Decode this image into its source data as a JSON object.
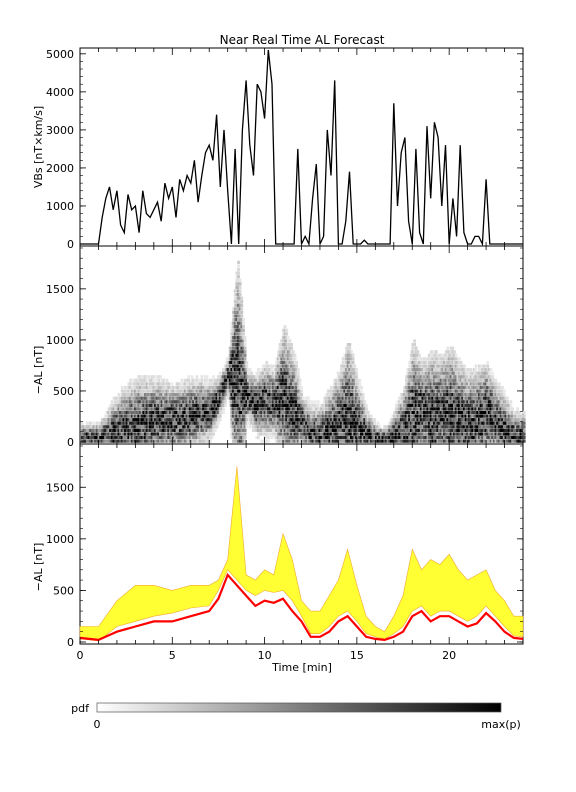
{
  "title": "Near Real Time AL Forecast",
  "colors": {
    "line": "#000000",
    "median": "#ff0000",
    "band_fill": "#ffff33",
    "band_edge": "#f0a830",
    "background": "#ffffff"
  },
  "xaxis": {
    "label": "Time [min]",
    "range": [
      0,
      24
    ],
    "ticks": [
      0,
      5,
      10,
      15,
      20
    ],
    "tick_labels": [
      "0",
      "5",
      "10",
      "15",
      "20"
    ]
  },
  "colorbar": {
    "label": "pdf",
    "min_label": "0",
    "max_label": "max(p)"
  },
  "chart_data": [
    {
      "type": "line",
      "panel": "top",
      "ylabel": "VBs [nT×km/s]",
      "ylim": [
        0,
        5100
      ],
      "y_ticks": [
        0,
        1000,
        2000,
        3000,
        4000,
        5000
      ],
      "y_tick_labels": [
        "0",
        "1000",
        "2000",
        "3000",
        "4000",
        "5000"
      ],
      "series": [
        {
          "x": [
            0.0,
            1.0,
            1.2,
            1.4,
            1.6,
            1.8,
            2.0,
            2.2,
            2.4,
            2.6,
            2.8,
            3.0,
            3.2,
            3.4,
            3.6,
            3.8,
            4.0,
            4.2,
            4.4,
            4.6,
            4.8,
            5.0,
            5.2,
            5.4,
            5.6,
            5.8,
            6.0,
            6.2,
            6.4,
            6.6,
            6.8,
            7.0,
            7.2,
            7.4,
            7.6,
            7.8,
            8.0,
            8.2,
            8.4,
            8.6,
            8.8,
            9.0,
            9.2,
            9.4,
            9.6,
            9.8,
            10.0,
            10.2,
            10.4,
            10.6,
            10.8,
            11.0,
            11.2,
            11.4,
            11.6,
            11.8,
            12.0,
            12.2,
            12.4,
            12.6,
            12.8,
            13.0,
            13.2,
            13.4,
            13.6,
            13.8,
            14.0,
            14.2,
            14.4,
            14.6,
            14.8,
            15.0,
            15.2,
            15.4,
            15.6,
            15.8,
            16.0,
            16.2,
            16.4,
            16.6,
            16.8,
            17.0,
            17.2,
            17.4,
            17.6,
            17.8,
            18.0,
            18.2,
            18.4,
            18.6,
            18.8,
            19.0,
            19.2,
            19.4,
            19.6,
            19.8,
            20.0,
            20.2,
            20.4,
            20.6,
            20.8,
            21.0,
            21.2,
            21.4,
            21.6,
            21.8,
            22.0,
            22.2,
            22.4,
            22.6,
            22.8,
            23.0,
            23.2,
            23.4,
            23.6,
            23.8,
            24.0
          ],
          "y": [
            0,
            0,
            700,
            1200,
            1500,
            900,
            1400,
            500,
            300,
            1300,
            900,
            1000,
            300,
            1400,
            800,
            700,
            900,
            1100,
            600,
            1600,
            1200,
            1500,
            700,
            1700,
            1400,
            1800,
            1600,
            2200,
            1100,
            1800,
            2400,
            2600,
            2200,
            3400,
            1500,
            3000,
            1400,
            0,
            2500,
            0,
            3000,
            4300,
            2600,
            1800,
            4200,
            4000,
            3300,
            5100,
            4200,
            0,
            0,
            0,
            0,
            0,
            0,
            2500,
            0,
            200,
            0,
            1200,
            2100,
            0,
            200,
            3000,
            1800,
            4300,
            0,
            0,
            600,
            1900,
            0,
            0,
            0,
            100,
            0,
            0,
            0,
            0,
            0,
            0,
            0,
            3700,
            1000,
            2400,
            2800,
            600,
            0,
            2500,
            300,
            0,
            3100,
            1200,
            3200,
            2800,
            1000,
            2600,
            0,
            1200,
            200,
            2600,
            300,
            0,
            0,
            200,
            200,
            0,
            1700,
            0,
            0,
            0,
            0,
            0,
            0,
            0,
            0,
            0,
            0
          ]
        }
      ]
    },
    {
      "type": "heatmap",
      "panel": "middle",
      "ylabel": "−AL [nT]",
      "ylim": [
        0,
        1900
      ],
      "y_ticks": [
        0,
        500,
        1000,
        1500
      ],
      "y_tick_labels": [
        "0",
        "500",
        "1000",
        "1500"
      ],
      "color_scale": "white to black (pdf, 0 to max(p))"
    },
    {
      "type": "area",
      "panel": "bottom",
      "ylabel": "−AL [nT]",
      "ylim": [
        0,
        1900
      ],
      "y_ticks": [
        0,
        500,
        1000,
        1500
      ],
      "y_tick_labels": [
        "0",
        "500",
        "1000",
        "1500"
      ],
      "x": [
        0.0,
        1.0,
        2.0,
        3.0,
        4.0,
        5.0,
        6.0,
        7.0,
        7.5,
        8.0,
        8.5,
        9.0,
        9.5,
        10.0,
        10.5,
        11.0,
        11.5,
        12.0,
        12.5,
        13.0,
        13.5,
        14.0,
        14.5,
        15.0,
        15.5,
        16.0,
        16.5,
        17.0,
        17.5,
        18.0,
        18.5,
        19.0,
        19.5,
        20.0,
        20.5,
        21.0,
        21.5,
        22.0,
        22.5,
        23.0,
        23.5,
        24.0
      ],
      "median": [
        40,
        20,
        100,
        150,
        200,
        200,
        250,
        300,
        420,
        650,
        550,
        450,
        350,
        400,
        380,
        420,
        300,
        200,
        50,
        50,
        100,
        200,
        250,
        150,
        50,
        30,
        20,
        50,
        100,
        250,
        300,
        200,
        250,
        250,
        200,
        150,
        180,
        280,
        200,
        100,
        40,
        30
      ],
      "band_low": [
        30,
        10,
        150,
        200,
        250,
        280,
        330,
        350,
        500,
        700,
        600,
        500,
        450,
        500,
        480,
        500,
        400,
        250,
        80,
        80,
        150,
        250,
        300,
        200,
        80,
        50,
        30,
        80,
        150,
        300,
        350,
        250,
        300,
        300,
        250,
        200,
        250,
        350,
        250,
        150,
        60,
        50
      ],
      "band_high": [
        150,
        150,
        400,
        550,
        550,
        500,
        550,
        550,
        600,
        800,
        1700,
        650,
        600,
        700,
        650,
        1050,
        800,
        400,
        300,
        300,
        450,
        600,
        900,
        550,
        250,
        150,
        100,
        250,
        450,
        900,
        700,
        800,
        750,
        850,
        700,
        600,
        650,
        700,
        500,
        400,
        250,
        250
      ]
    }
  ]
}
